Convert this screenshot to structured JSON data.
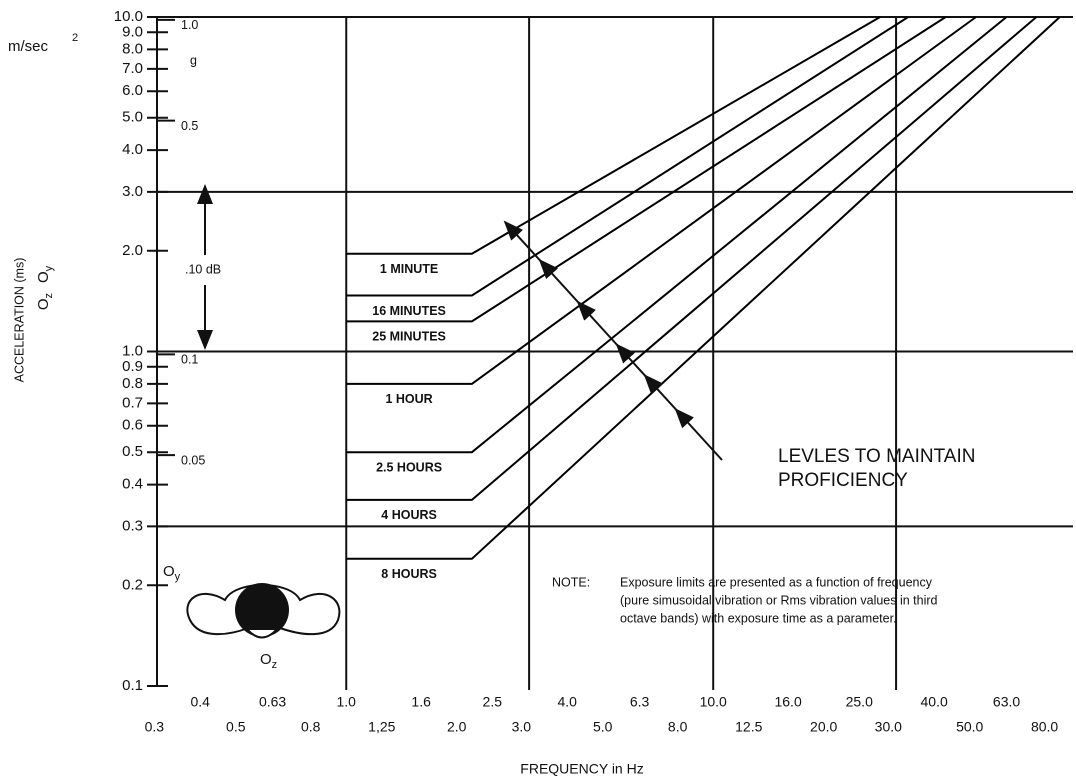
{
  "chart_data": {
    "type": "line",
    "xscale": "log",
    "yscale": "log",
    "y_unit": "m/sec",
    "y_unit_exp": "2",
    "y2_unit": "g",
    "y_label": "ACCELERATION (ms)",
    "axis_symbols": [
      {
        "base": "O",
        "sub": "z"
      },
      {
        "base": "O",
        "sub": "y"
      }
    ],
    "figure_labels": [
      {
        "base": "O",
        "sub": "y"
      },
      {
        "base": "O",
        "sub": "z"
      }
    ],
    "x_label": "FREQUENCY in Hz",
    "range_annotation": ".10 dB",
    "arrow_annotation": [
      "LEVLES TO MAINTAIN",
      "PROFICIENCY"
    ],
    "note_label": "NOTE:",
    "note": [
      "Exposure limits are presented as a function of frequency",
      "(pure simusoidal vibration or Rms vibration  values in third",
      "octave bands) with exposure time as a parameter."
    ],
    "xlim": [
      0.305,
      95.6
    ],
    "ylim": [
      0.1,
      10
    ],
    "y2lim": [
      0.0102,
      1.02
    ],
    "xticks": [
      0.3,
      0.4,
      0.5,
      0.63,
      0.8,
      {
        "value": 1,
        "label": "1.0"
      },
      {
        "value": 1.25,
        "label": "1,25"
      },
      1.6,
      {
        "value": 2,
        "label": "2.0"
      },
      2.5,
      {
        "value": 3,
        "label": "3.0"
      },
      {
        "value": 4,
        "label": "4.0"
      },
      {
        "value": 5,
        "label": "5.0"
      },
      6.3,
      {
        "value": 8,
        "label": "8.0"
      },
      {
        "value": 10,
        "label": "10.0"
      },
      12.5,
      {
        "value": 16,
        "label": "16.0"
      },
      {
        "value": 20,
        "label": "20.0"
      },
      {
        "value": 25,
        "label": "25.0"
      },
      {
        "value": 30,
        "label": "30.0"
      },
      {
        "value": 40,
        "label": "40.0"
      },
      {
        "value": 50,
        "label": "50.0"
      },
      {
        "value": 63,
        "label": "63.0"
      },
      {
        "value": 80,
        "label": "80.0"
      }
    ],
    "yticks": [
      0.1,
      0.2,
      0.3,
      0.4,
      0.5,
      0.6,
      0.7,
      0.8,
      0.9,
      {
        "value": 1,
        "label": "1.0"
      },
      {
        "value": 2,
        "label": "2.0"
      },
      {
        "value": 3,
        "label": "3.0"
      },
      {
        "value": 4,
        "label": "4.0"
      },
      {
        "value": 5,
        "label": "5.0"
      },
      {
        "value": 6,
        "label": "6.0"
      },
      {
        "value": 7,
        "label": "7.0"
      },
      {
        "value": 8,
        "label": "8.0"
      },
      {
        "value": 9,
        "label": "9.0"
      },
      {
        "value": 10,
        "label": "10.0"
      }
    ],
    "y2ticks": [
      {
        "value": 1,
        "label": "1.0"
      },
      0.5,
      0.1,
      0.05
    ],
    "xgrid": [
      1,
      3.15,
      10,
      31.5
    ],
    "ygrid": [
      0.3,
      1,
      3,
      10
    ],
    "series": [
      {
        "name": "1 MINUTE",
        "color": "#000000",
        "x": [
          1,
          2.2,
          28.5
        ],
        "values": [
          1.96,
          1.96,
          10
        ]
      },
      {
        "name": "16 MINUTES",
        "color": "#000000",
        "x": [
          1,
          2.2,
          34
        ],
        "values": [
          1.47,
          1.47,
          10
        ]
      },
      {
        "name": "25 MINUTES",
        "color": "#000000",
        "x": [
          1,
          2.2,
          43
        ],
        "values": [
          1.23,
          1.23,
          10
        ]
      },
      {
        "name": "1 HOUR",
        "color": "#000000",
        "x": [
          1,
          2.2,
          52
        ],
        "values": [
          0.8,
          0.8,
          10
        ]
      },
      {
        "name": "2.5 HOURS",
        "color": "#000000",
        "x": [
          1,
          2.2,
          63
        ],
        "values": [
          0.5,
          0.5,
          10
        ]
      },
      {
        "name": "4 HOURS",
        "color": "#000000",
        "x": [
          1,
          2.2,
          76
        ],
        "values": [
          0.36,
          0.36,
          10
        ]
      },
      {
        "name": "8 HOURS",
        "color": "#000000",
        "x": [
          1,
          2.2,
          88
        ],
        "values": [
          0.24,
          0.24,
          10
        ]
      }
    ]
  }
}
